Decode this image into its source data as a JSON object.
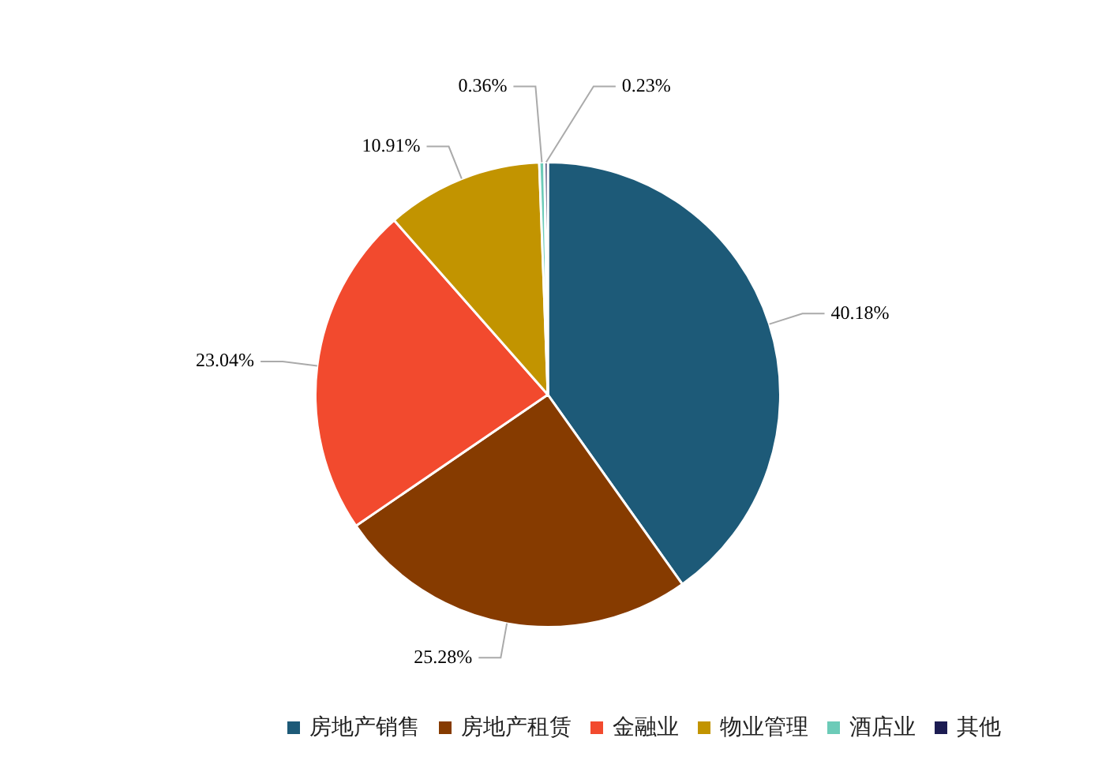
{
  "chart_data": {
    "type": "pie",
    "categories": [
      "房地产销售",
      "房地产租赁",
      "金融业",
      "物业管理",
      "酒店业",
      "其他"
    ],
    "values": [
      40.18,
      25.28,
      23.04,
      10.91,
      0.36,
      0.23
    ],
    "value_labels": [
      "40.18%",
      "25.28%",
      "23.04%",
      "10.91%",
      "0.36%",
      "0.23%"
    ],
    "colors": [
      "#1d5a78",
      "#863b00",
      "#f24a2e",
      "#c29400",
      "#6ccbb8",
      "#1c1c52"
    ],
    "legend": "bottom"
  }
}
